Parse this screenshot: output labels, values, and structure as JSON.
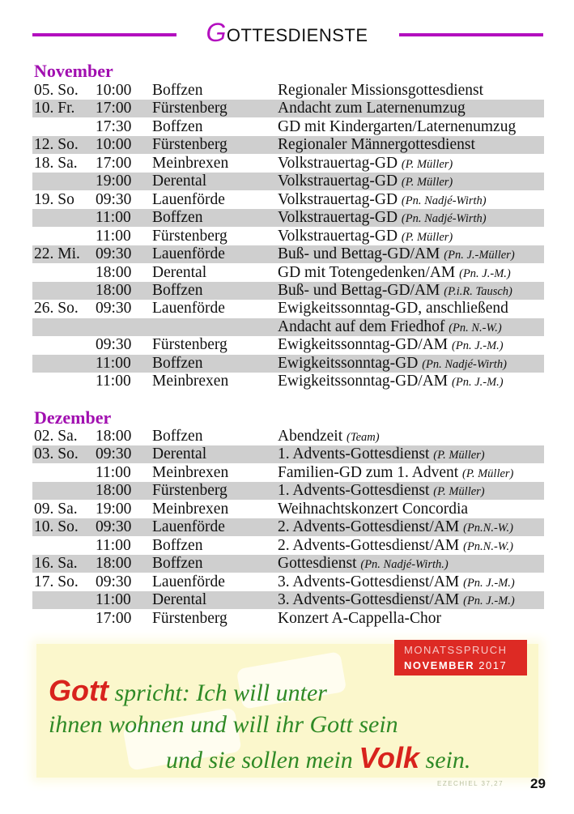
{
  "header": {
    "title_initial": "G",
    "title_rest": "OTTESDIENSTE"
  },
  "colors": {
    "accent": "#b30fbf",
    "shade": "#cfcfcf",
    "red": "#dd2a24",
    "green": "#2f8a26"
  },
  "sections": [
    {
      "month": "November",
      "rows": [
        {
          "date": "05. So.",
          "time": "10:00",
          "place": "Boffzen",
          "event": "Regionaler Missionsgottesdienst",
          "note": ""
        },
        {
          "date": "10. Fr.",
          "time": "17:00",
          "place": "Fürstenberg",
          "event": "Andacht zum Laternenumzug",
          "note": ""
        },
        {
          "date": "",
          "time": "17:30",
          "place": "Boffzen",
          "event": "GD mit Kindergarten/Laternenumzug",
          "note": ""
        },
        {
          "date": "12. So.",
          "time": "10:00",
          "place": "Fürstenberg",
          "event": "Regionaler Männergottesdienst",
          "note": ""
        },
        {
          "date": "18. Sa.",
          "time": "17:00",
          "place": "Meinbrexen",
          "event": "Volkstrauertag-GD",
          "note": "(P. Müller)"
        },
        {
          "date": "",
          "time": "19:00",
          "place": "Derental",
          "event": "Volkstrauertag-GD",
          "note": "(P. Müller)"
        },
        {
          "date": "19. So",
          "time": "09:30",
          "place": "Lauenförde",
          "event": "Volkstrauertag-GD",
          "note": "(Pn. Nadjé-Wirth)"
        },
        {
          "date": "",
          "time": "11:00",
          "place": "Boffzen",
          "event": "Volkstrauertag-GD",
          "note": "(Pn. Nadjé-Wirth)"
        },
        {
          "date": "",
          "time": "11:00",
          "place": "Fürstenberg",
          "event": "Volkstrauertag-GD",
          "note": "(P. Müller)"
        },
        {
          "date": "22. Mi.",
          "time": "09:30",
          "place": "Lauenförde",
          "event": "Buß- und Bettag-GD/AM",
          "note": "(Pn. J.-Müller)"
        },
        {
          "date": "",
          "time": "18:00",
          "place": "Derental",
          "event": "GD mit Totengedenken/AM",
          "note": "(Pn. J.-M.)"
        },
        {
          "date": "",
          "time": "18:00",
          "place": "Boffzen",
          "event": "Buß- und Bettag-GD/AM",
          "note": "(P.i.R. Tausch)"
        },
        {
          "date": "26. So.",
          "time": "09:30",
          "place": "Lauenförde",
          "event": "Ewigkeitssonntag-GD, anschließend",
          "note": ""
        },
        {
          "date": "",
          "time": "",
          "place": "",
          "event": "Andacht auf dem Friedhof",
          "note": "(Pn. N.-W.)"
        },
        {
          "date": "",
          "time": "09:30",
          "place": "Fürstenberg",
          "event": "Ewigkeitssonntag-GD/AM",
          "note": "(Pn. J.-M.)"
        },
        {
          "date": "",
          "time": "11:00",
          "place": "Boffzen",
          "event": "Ewigkeitssonntag-GD",
          "note": "(Pn. Nadjé-Wirth)"
        },
        {
          "date": "",
          "time": "11:00",
          "place": "Meinbrexen",
          "event": "Ewigkeitssonntag-GD/AM",
          "note": "(Pn. J.-M.)"
        }
      ]
    },
    {
      "month": "Dezember",
      "rows": [
        {
          "date": "02. Sa.",
          "time": "18:00",
          "place": "Boffzen",
          "event": "Abendzeit",
          "note": "(Team)"
        },
        {
          "date": "03. So.",
          "time": "09:30",
          "place": "Derental",
          "event": "1. Advents-Gottesdienst",
          "note": "(P. Müller)"
        },
        {
          "date": "",
          "time": "11:00",
          "place": "Meinbrexen",
          "event": "Familien-GD zum 1. Advent",
          "note": "(P. Müller)"
        },
        {
          "date": "",
          "time": "18:00",
          "place": "Fürstenberg",
          "event": "1. Advents-Gottesdienst",
          "note": "(P. Müller)"
        },
        {
          "date": "09. Sa.",
          "time": "19:00",
          "place": "Meinbrexen",
          "event": "Weihnachtskonzert Concordia",
          "note": ""
        },
        {
          "date": "10. So.",
          "time": "09:30",
          "place": "Lauenförde",
          "event": "2. Advents-Gottesdienst/AM",
          "note": "(Pn.N.-W.)"
        },
        {
          "date": "",
          "time": "11:00",
          "place": "Boffzen",
          "event": "2. Advents-Gottesdienst/AM",
          "note": "(Pn.N.-W.)"
        },
        {
          "date": "16. Sa.",
          "time": "18:00",
          "place": "Boffzen",
          "event": "Gottesdienst",
          "note": "(Pn. Nadjé-Wirth.)"
        },
        {
          "date": "17. So.",
          "time": "09:30",
          "place": "Lauenförde",
          "event": "3. Advents-Gottesdienst/AM",
          "note": "(Pn. J.-M.)"
        },
        {
          "date": "",
          "time": "11:00",
          "place": "Derental",
          "event": "3. Advents-Gottesdienst/AM",
          "note": "(Pn. J.-M.)"
        },
        {
          "date": "",
          "time": "17:00",
          "place": "Fürstenberg",
          "event": "Konzert A-Cappella-Chor",
          "note": ""
        }
      ]
    }
  ],
  "banner": {
    "label_line1": "MONATSSPRUCH",
    "label_month": "NOVEMBER",
    "label_year": "2017",
    "word_gott": "Gott",
    "line1_rest": "spricht: Ich will unter",
    "line2": "ihnen wohnen und will ihr Gott sein",
    "line3_pre": "und sie sollen mein",
    "word_volk": "Volk",
    "line3_post": "sein.",
    "watermark_1": "Volk",
    "watermark_2": "Gott",
    "reference": "EZECHIEL 37,27"
  },
  "page_number": "29"
}
